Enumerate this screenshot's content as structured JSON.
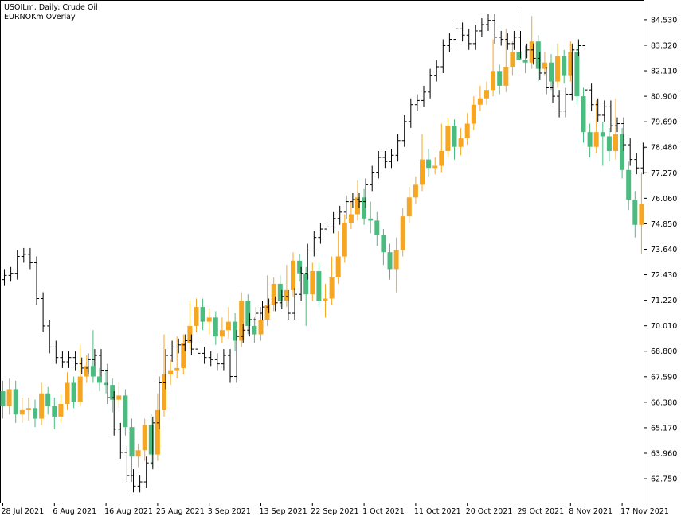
{
  "chart_data": {
    "type": "candlestick",
    "title": "USOILm, Daily:  Crude Oil",
    "subtitle": "EURNOKm Overlay",
    "categories": [
      "28 Jul 2021",
      null,
      null,
      null,
      null,
      null,
      null,
      null,
      "6 Aug 2021",
      null,
      null,
      null,
      null,
      null,
      null,
      null,
      "16 Aug 2021",
      null,
      null,
      null,
      null,
      null,
      null,
      null,
      "25 Aug 2021",
      null,
      null,
      null,
      null,
      null,
      null,
      null,
      "3 Sep 2021",
      null,
      null,
      null,
      null,
      null,
      null,
      null,
      "13 Sep 2021",
      null,
      null,
      null,
      null,
      null,
      null,
      null,
      "22 Sep 2021",
      null,
      null,
      null,
      null,
      null,
      null,
      null,
      "1 Oct 2021",
      null,
      null,
      null,
      null,
      null,
      null,
      null,
      "11 Oct 2021",
      null,
      null,
      null,
      null,
      null,
      null,
      null,
      "20 Oct 2021",
      null,
      null,
      null,
      null,
      null,
      null,
      null,
      "29 Oct 2021",
      null,
      null,
      null,
      null,
      null,
      null,
      null,
      "8 Nov 2021",
      null,
      null,
      null,
      null,
      null,
      null,
      null,
      "17 Nov 2021",
      null,
      null,
      null
    ],
    "ylim": [
      61.62,
      85.47
    ],
    "yticks": [
      {
        "value": 84.53,
        "label": "84.530"
      },
      {
        "value": 83.32,
        "label": "83.320"
      },
      {
        "value": 82.11,
        "label": "82.110"
      },
      {
        "value": 80.9,
        "label": "80.900"
      },
      {
        "value": 79.69,
        "label": "79.690"
      },
      {
        "value": 78.48,
        "label": "78.480"
      },
      {
        "value": 77.27,
        "label": "77.270"
      },
      {
        "value": 76.06,
        "label": "76.060"
      },
      {
        "value": 74.85,
        "label": "74.850"
      },
      {
        "value": 73.64,
        "label": "73.640"
      },
      {
        "value": 72.43,
        "label": "72.430"
      },
      {
        "value": 71.22,
        "label": "71.220"
      },
      {
        "value": 70.01,
        "label": "70.010"
      },
      {
        "value": 68.8,
        "label": "68.800"
      },
      {
        "value": 67.59,
        "label": "67.590"
      },
      {
        "value": 66.38,
        "label": "66.380"
      },
      {
        "value": 65.17,
        "label": "65.170"
      },
      {
        "value": 63.96,
        "label": "63.960"
      },
      {
        "value": 62.75,
        "label": "62.750"
      }
    ],
    "main": {
      "up_color": "#f5a623",
      "down_color": "#4cbb80",
      "open": [
        66.9,
        66.2,
        67.0,
        65.8,
        66.0,
        66.1,
        65.6,
        66.8,
        66.2,
        65.7,
        66.3,
        67.3,
        66.4,
        67.6,
        68.1,
        67.6,
        67.3,
        67.2,
        66.5,
        66.7,
        65.2,
        63.8,
        64.1,
        65.3,
        63.9,
        66.0,
        67.7,
        67.9,
        68.0,
        69.2,
        70.0,
        70.9,
        70.2,
        70.4,
        69.5,
        69.8,
        70.2,
        69.3,
        71.2,
        70.0,
        69.6,
        70.3,
        71.0,
        72.0,
        71.2,
        71.7,
        73.1,
        72.5,
        71.5,
        72.6,
        71.2,
        71.3,
        72.3,
        73.3,
        74.9,
        75.3,
        76.1,
        75.1,
        75.0,
        74.3,
        73.5,
        72.7,
        73.6,
        75.2,
        76.1,
        76.7,
        77.9,
        77.5,
        77.6,
        78.3,
        79.5,
        78.5,
        78.9,
        79.6,
        80.5,
        80.8,
        81.2,
        82.1,
        81.4,
        82.3,
        83.0,
        82.6,
        82.5,
        83.5,
        82.2,
        82.5,
        81.6,
        82.8,
        81.9,
        83.0,
        80.9,
        79.2,
        78.5,
        79.2,
        79.0,
        78.3,
        79.1,
        77.4,
        76.0,
        74.8
      ],
      "high": [
        67.4,
        67.5,
        67.4,
        66.6,
        66.6,
        66.5,
        67.3,
        67.1,
        66.6,
        66.8,
        67.8,
        67.6,
        69.1,
        68.6,
        69.8,
        68.0,
        67.9,
        67.5,
        67.3,
        67.0,
        65.6,
        64.4,
        65.6,
        65.8,
        66.8,
        69.6,
        68.4,
        69.5,
        69.6,
        71.2,
        71.3,
        71.3,
        70.8,
        70.7,
        70.4,
        70.9,
        70.6,
        71.6,
        71.5,
        70.4,
        70.9,
        72.4,
        72.3,
        72.4,
        72.9,
        73.5,
        73.4,
        72.8,
        73.0,
        73.0,
        72.0,
        73.3,
        74.5,
        75.3,
        75.9,
        76.9,
        76.5,
        75.9,
        75.4,
        74.6,
        73.9,
        74.2,
        75.6,
        76.6,
        77.1,
        79.1,
        78.4,
        78.0,
        79.6,
        79.9,
        79.8,
        79.4,
        80.1,
        80.9,
        81.4,
        81.6,
        83.6,
        82.4,
        84.1,
        83.5,
        84.9,
        83.3,
        84.7,
        83.8,
        83.0,
        82.9,
        83.4,
        83.1,
        83.5,
        83.3,
        81.3,
        79.6,
        80.7,
        79.7,
        79.4,
        80.8,
        79.4,
        77.8,
        76.4,
        77.3
      ],
      "low": [
        65.6,
        65.8,
        65.4,
        65.4,
        65.5,
        65.2,
        65.3,
        65.8,
        65.1,
        65.4,
        66.0,
        66.1,
        66.2,
        67.3,
        67.3,
        66.9,
        66.8,
        65.9,
        66.1,
        64.8,
        62.6,
        63.3,
        63.6,
        63.4,
        63.6,
        65.7,
        67.2,
        67.5,
        67.7,
        68.9,
        69.7,
        69.8,
        69.6,
        69.1,
        69.2,
        69.4,
        68.8,
        69.0,
        69.6,
        69.2,
        69.3,
        70.0,
        70.7,
        70.9,
        70.9,
        71.4,
        72.1,
        70.0,
        71.2,
        70.9,
        70.4,
        71.0,
        72.0,
        73.0,
        74.6,
        75.0,
        74.8,
        74.4,
        73.8,
        72.9,
        72.2,
        71.6,
        73.3,
        74.9,
        75.8,
        76.4,
        77.1,
        77.2,
        77.3,
        78.0,
        77.9,
        78.1,
        78.6,
        79.3,
        80.2,
        80.5,
        80.9,
        81.0,
        81.1,
        81.9,
        81.9,
        82.0,
        82.2,
        81.6,
        81.9,
        81.2,
        81.3,
        81.5,
        81.6,
        80.5,
        78.7,
        78.0,
        78.2,
        77.6,
        77.8,
        77.9,
        77.0,
        75.5,
        74.2,
        73.4
      ],
      "close": [
        66.2,
        67.0,
        65.8,
        66.0,
        66.1,
        65.6,
        66.8,
        66.2,
        65.7,
        66.3,
        67.3,
        66.4,
        67.6,
        68.1,
        67.6,
        67.3,
        67.2,
        66.5,
        66.7,
        65.2,
        63.8,
        64.1,
        65.3,
        63.9,
        66.0,
        67.7,
        67.9,
        68.0,
        69.2,
        70.0,
        70.9,
        70.2,
        70.4,
        69.5,
        69.8,
        70.2,
        69.3,
        71.2,
        70.0,
        69.6,
        70.3,
        71.0,
        72.0,
        71.2,
        71.7,
        73.1,
        72.5,
        71.5,
        72.6,
        71.2,
        71.3,
        72.3,
        73.3,
        74.9,
        75.3,
        76.1,
        75.1,
        75.0,
        74.3,
        73.5,
        72.7,
        73.6,
        75.2,
        76.1,
        76.7,
        77.9,
        77.5,
        77.6,
        78.3,
        79.5,
        78.5,
        78.9,
        79.6,
        80.5,
        80.8,
        81.2,
        82.1,
        81.4,
        82.3,
        83.0,
        82.6,
        82.5,
        83.5,
        82.2,
        82.5,
        81.6,
        82.8,
        81.9,
        83.0,
        80.9,
        79.2,
        78.5,
        79.2,
        79.0,
        78.3,
        79.1,
        77.4,
        76.0,
        74.8,
        75.8
      ]
    },
    "overlay": {
      "color": "#000000",
      "open": [
        72.2,
        72.4,
        72.5,
        73.3,
        73.4,
        73.0,
        71.3,
        70.0,
        69.0,
        68.5,
        68.3,
        68.5,
        68.2,
        68.0,
        68.4,
        68.6,
        67.9,
        66.6,
        65.1,
        64.0,
        62.9,
        62.4,
        62.6,
        63.5,
        65.4,
        67.3,
        68.6,
        69.0,
        69.1,
        69.3,
        68.9,
        68.7,
        68.5,
        68.4,
        68.2,
        68.6,
        67.6,
        69.5,
        69.8,
        70.3,
        70.6,
        70.9,
        71.0,
        71.1,
        71.4,
        70.6,
        71.5,
        72.5,
        73.6,
        74.2,
        74.6,
        74.7,
        75.1,
        75.4,
        75.9,
        76.0,
        75.9,
        76.7,
        77.3,
        78.0,
        77.8,
        78.1,
        78.8,
        79.7,
        80.5,
        80.7,
        81.1,
        81.9,
        82.3,
        83.3,
        83.6,
        84.1,
        83.8,
        83.4,
        84.0,
        84.3,
        84.5,
        83.7,
        83.6,
        83.4,
        83.7,
        83.0,
        83.1,
        82.7,
        82.0,
        81.3,
        80.9,
        80.2,
        81.0,
        83.1,
        83.3,
        81.2,
        80.5,
        80.0,
        80.4,
        79.5,
        79.6,
        78.6,
        77.9,
        77.5
      ],
      "high": [
        72.7,
        72.8,
        73.6,
        73.7,
        73.7,
        73.3,
        71.6,
        70.3,
        69.3,
        68.8,
        68.8,
        68.8,
        68.5,
        68.7,
        68.9,
        68.9,
        68.2,
        66.9,
        65.4,
        64.3,
        63.2,
        62.9,
        63.8,
        65.7,
        67.6,
        68.9,
        69.3,
        69.4,
        69.6,
        69.6,
        69.2,
        69.0,
        68.8,
        68.7,
        68.9,
        68.9,
        69.8,
        70.1,
        70.6,
        70.9,
        71.2,
        71.3,
        71.4,
        71.7,
        71.7,
        71.8,
        72.8,
        73.9,
        74.5,
        74.9,
        75.0,
        75.4,
        75.7,
        76.2,
        76.3,
        76.3,
        77.0,
        77.6,
        78.3,
        78.3,
        78.4,
        79.1,
        80.0,
        80.8,
        81.0,
        81.4,
        82.2,
        82.6,
        83.6,
        83.9,
        84.4,
        84.4,
        84.1,
        84.3,
        84.6,
        84.8,
        84.8,
        84.0,
        83.9,
        84.0,
        84.0,
        83.4,
        83.4,
        83.0,
        82.3,
        81.6,
        81.2,
        81.3,
        83.4,
        83.6,
        83.6,
        81.5,
        80.8,
        80.7,
        80.7,
        79.9,
        79.9,
        78.9,
        78.2,
        78.7
      ],
      "low": [
        71.9,
        72.1,
        72.2,
        73.0,
        72.7,
        71.0,
        69.7,
        68.7,
        68.2,
        68.0,
        68.0,
        67.9,
        67.7,
        67.7,
        68.1,
        67.6,
        66.3,
        64.8,
        63.7,
        62.6,
        62.1,
        62.1,
        62.3,
        63.2,
        65.1,
        67.0,
        68.3,
        68.7,
        68.8,
        68.6,
        68.4,
        68.2,
        68.1,
        67.9,
        67.9,
        67.3,
        67.3,
        69.2,
        69.5,
        70.0,
        70.3,
        70.6,
        70.7,
        70.8,
        70.3,
        70.3,
        71.2,
        72.2,
        73.3,
        73.9,
        74.3,
        74.4,
        74.8,
        75.1,
        75.6,
        75.6,
        75.6,
        76.4,
        77.0,
        77.5,
        77.5,
        77.8,
        78.5,
        79.4,
        80.2,
        80.4,
        80.8,
        81.6,
        82.0,
        83.0,
        83.3,
        83.5,
        83.1,
        83.1,
        83.7,
        84.0,
        83.4,
        83.3,
        83.1,
        83.1,
        82.7,
        82.7,
        82.4,
        81.7,
        81.0,
        80.6,
        79.9,
        79.9,
        80.7,
        82.8,
        80.9,
        80.2,
        79.7,
        79.7,
        79.2,
        79.2,
        78.3,
        77.6,
        77.2,
        77.2
      ],
      "close": [
        72.4,
        72.5,
        73.3,
        73.4,
        73.0,
        71.3,
        70.0,
        69.0,
        68.5,
        68.3,
        68.5,
        68.2,
        68.0,
        68.4,
        68.6,
        67.9,
        66.6,
        65.1,
        64.0,
        62.9,
        62.4,
        62.6,
        63.5,
        65.4,
        67.3,
        68.6,
        69.0,
        69.1,
        69.3,
        68.9,
        68.7,
        68.5,
        68.4,
        68.2,
        68.6,
        67.6,
        69.5,
        69.8,
        70.3,
        70.6,
        70.9,
        71.0,
        71.1,
        71.4,
        70.6,
        71.5,
        72.5,
        73.6,
        74.2,
        74.6,
        74.7,
        75.1,
        75.4,
        75.9,
        76.0,
        75.9,
        76.7,
        77.3,
        78.0,
        77.8,
        78.1,
        78.8,
        79.7,
        80.5,
        80.7,
        81.1,
        81.9,
        82.3,
        83.3,
        83.6,
        84.1,
        83.8,
        83.4,
        84.0,
        84.3,
        84.5,
        83.7,
        83.6,
        83.4,
        83.7,
        83.0,
        83.1,
        82.7,
        82.0,
        81.3,
        80.9,
        80.2,
        81.0,
        83.1,
        83.3,
        81.2,
        80.5,
        80.0,
        80.4,
        79.5,
        79.6,
        78.6,
        77.9,
        77.5,
        78.4
      ]
    }
  }
}
